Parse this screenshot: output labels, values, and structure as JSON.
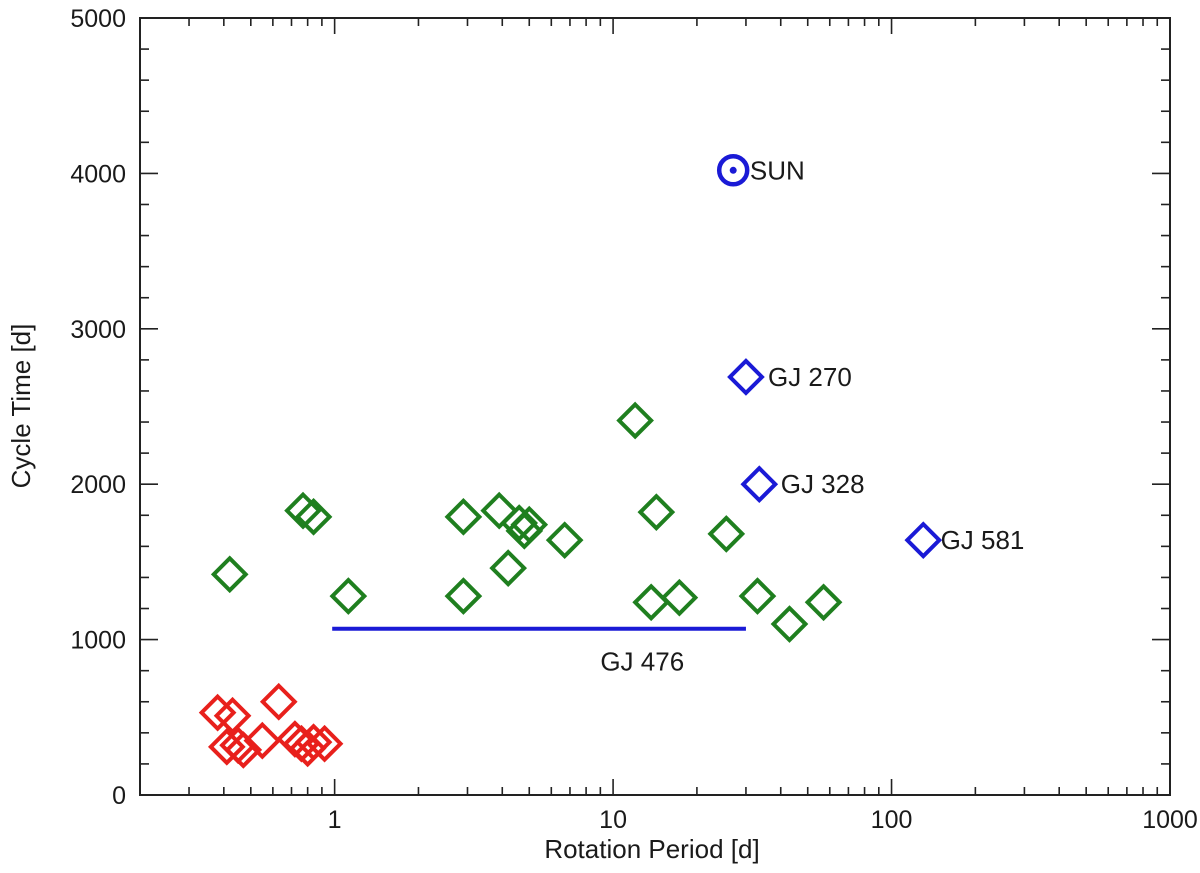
{
  "chart_data": {
    "type": "scatter",
    "xlabel": "Rotation Period [d]",
    "ylabel": "Cycle Time [d]",
    "x_scale": "log",
    "xlim": [
      0.2,
      1000
    ],
    "ylim": [
      0,
      5000
    ],
    "x_ticks": [
      {
        "value": 1,
        "label": "1"
      },
      {
        "value": 10,
        "label": "10"
      },
      {
        "value": 100,
        "label": "100"
      },
      {
        "value": 1000,
        "label": "1000"
      }
    ],
    "y_ticks": [
      {
        "value": 0,
        "label": "0"
      },
      {
        "value": 1000,
        "label": "1000"
      },
      {
        "value": 2000,
        "label": "2000"
      },
      {
        "value": 3000,
        "label": "3000"
      },
      {
        "value": 4000,
        "label": "4000"
      },
      {
        "value": 5000,
        "label": "5000"
      }
    ],
    "grid": false,
    "colors": {
      "red": "#e8201c",
      "green": "#1f7f1f",
      "blue": "#1a1ad6",
      "axis": "#222222"
    },
    "series": [
      {
        "color": "#e8201c",
        "marker": "diamond",
        "points": [
          {
            "x": 0.38,
            "y": 530
          },
          {
            "x": 0.41,
            "y": 310
          },
          {
            "x": 0.43,
            "y": 510
          },
          {
            "x": 0.45,
            "y": 320
          },
          {
            "x": 0.47,
            "y": 290
          },
          {
            "x": 0.55,
            "y": 350
          },
          {
            "x": 0.63,
            "y": 600
          },
          {
            "x": 0.72,
            "y": 360
          },
          {
            "x": 0.76,
            "y": 330
          },
          {
            "x": 0.8,
            "y": 300
          },
          {
            "x": 0.84,
            "y": 340
          },
          {
            "x": 0.92,
            "y": 330
          }
        ]
      },
      {
        "color": "#1f7f1f",
        "marker": "diamond",
        "points": [
          {
            "x": 0.42,
            "y": 1420
          },
          {
            "x": 0.77,
            "y": 1830
          },
          {
            "x": 0.84,
            "y": 1790
          },
          {
            "x": 1.12,
            "y": 1280
          },
          {
            "x": 2.9,
            "y": 1790
          },
          {
            "x": 2.9,
            "y": 1280
          },
          {
            "x": 3.9,
            "y": 1830
          },
          {
            "x": 4.2,
            "y": 1460
          },
          {
            "x": 4.6,
            "y": 1750
          },
          {
            "x": 4.8,
            "y": 1700
          },
          {
            "x": 5.0,
            "y": 1740
          },
          {
            "x": 6.7,
            "y": 1640
          },
          {
            "x": 12.0,
            "y": 2410
          },
          {
            "x": 13.7,
            "y": 1240
          },
          {
            "x": 14.3,
            "y": 1820
          },
          {
            "x": 17.3,
            "y": 1270
          },
          {
            "x": 25.5,
            "y": 1680
          },
          {
            "x": 33.0,
            "y": 1280
          },
          {
            "x": 43.0,
            "y": 1100
          },
          {
            "x": 57.0,
            "y": 1240
          }
        ]
      },
      {
        "color": "#1a1ad6",
        "marker": "diamond",
        "points": [
          {
            "x": 30.0,
            "y": 2690
          },
          {
            "x": 33.5,
            "y": 2000
          },
          {
            "x": 130.0,
            "y": 1640
          }
        ]
      },
      {
        "color": "#1a1ad6",
        "marker": "sun",
        "points": [
          {
            "x": 27.0,
            "y": 4020
          }
        ]
      }
    ],
    "range_line": {
      "x1": 0.98,
      "x2": 30.0,
      "y": 1070,
      "color": "#1a1ad6"
    },
    "annotations": [
      {
        "text": "SUN",
        "x": 31.0,
        "y": 4020,
        "anchor": "start"
      },
      {
        "text": "GJ 270",
        "x": 36.0,
        "y": 2690,
        "anchor": "start"
      },
      {
        "text": "GJ 328",
        "x": 40.0,
        "y": 2000,
        "anchor": "start"
      },
      {
        "text": "GJ 581",
        "x": 150.0,
        "y": 1640,
        "anchor": "start"
      },
      {
        "text": "GJ 476",
        "x": 18.0,
        "y": 860,
        "anchor": "end"
      }
    ]
  }
}
